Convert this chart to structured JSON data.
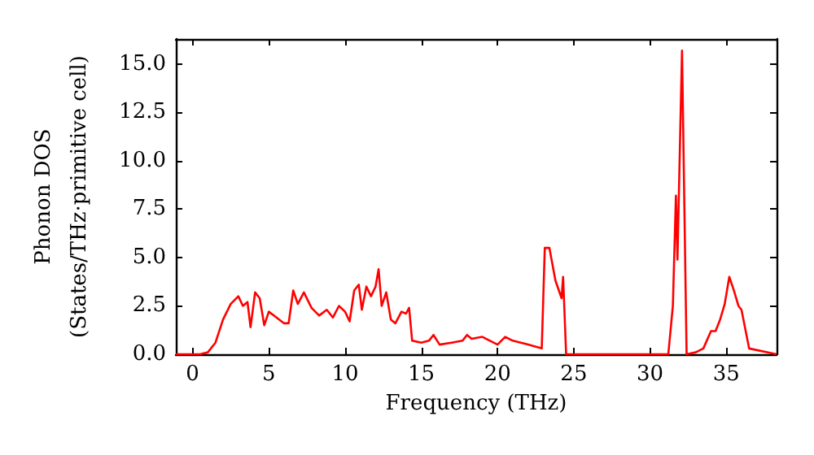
{
  "chart_data": {
    "type": "line",
    "xlabel": "Frequency (THz)",
    "ylabel": "Phonon DOS\n(States/THz·primitive cell)",
    "xlim": [
      -1.1,
      38.3
    ],
    "xticks": [
      0,
      5,
      10,
      15,
      20,
      25,
      30,
      35
    ],
    "ylim": [
      0,
      16.3
    ],
    "yticks": [
      {
        "value": 0,
        "label": "0.0"
      },
      2.5,
      {
        "value": 5,
        "label": "5.0"
      },
      7.5,
      {
        "value": 10,
        "label": "10.0"
      },
      12.5,
      {
        "value": 15,
        "label": "15.0"
      }
    ],
    "grid": false,
    "marker": "none",
    "line_style": "solid",
    "series": [
      {
        "color": "#ff0000",
        "x": [
          -1.1,
          0,
          0.5,
          1,
          1.5,
          2,
          2.5,
          3,
          3.3,
          3.6,
          3.8,
          4.1,
          4.4,
          4.7,
          5,
          5.5,
          6,
          6.3,
          6.6,
          6.9,
          7.3,
          7.8,
          8.3,
          8.8,
          9.2,
          9.6,
          10,
          10.3,
          10.6,
          10.9,
          11.1,
          11.4,
          11.7,
          12,
          12.2,
          12.4,
          12.7,
          13,
          13.3,
          13.7,
          14,
          14.2,
          14.4,
          15,
          15.5,
          15.8,
          16.2,
          17,
          17.7,
          18,
          18.3,
          19,
          19.5,
          20,
          20.5,
          21,
          22,
          22.9,
          23.1,
          23.4,
          23.8,
          24.2,
          24.3,
          24.5,
          31.2,
          31.5,
          31.7,
          31.8,
          32.1,
          32.4,
          33,
          33.5,
          34,
          34.3,
          34.6,
          34.9,
          35.2,
          35.5,
          35.8,
          36,
          36.5,
          38.3
        ],
        "values": [
          0,
          0,
          0,
          0.1,
          0.6,
          1.8,
          2.6,
          3.0,
          2.5,
          2.7,
          1.4,
          3.2,
          2.9,
          1.5,
          2.2,
          1.9,
          1.6,
          1.6,
          3.3,
          2.6,
          3.2,
          2.4,
          2.0,
          2.3,
          1.9,
          2.5,
          2.2,
          1.7,
          3.3,
          3.6,
          2.3,
          3.5,
          3.0,
          3.5,
          4.4,
          2.5,
          3.2,
          1.8,
          1.6,
          2.2,
          2.1,
          2.4,
          0.7,
          0.6,
          0.7,
          1.0,
          0.5,
          0.6,
          0.7,
          1.0,
          0.8,
          0.9,
          0.7,
          0.5,
          0.9,
          0.7,
          0.5,
          0.3,
          5.5,
          5.5,
          3.8,
          2.9,
          4.0,
          0,
          0,
          2.5,
          8.2,
          4.9,
          15.7,
          0,
          0.1,
          0.3,
          1.2,
          1.2,
          1.8,
          2.6,
          4.0,
          3.3,
          2.5,
          2.3,
          0.3,
          0
        ]
      }
    ]
  }
}
